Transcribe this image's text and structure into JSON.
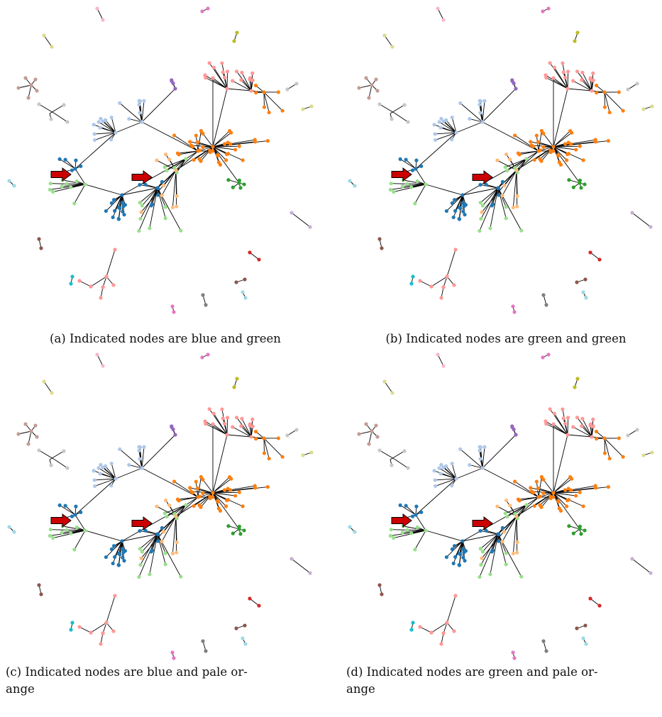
{
  "colors": {
    "edge": "#000000",
    "arrow_fill": "#cc0000",
    "arrow_stroke": "#000000",
    "blue": "#1f77b4",
    "light_blue": "#aec7e8",
    "orange": "#ff7f0e",
    "pale_orange": "#ffbb78",
    "green": "#2ca02c",
    "light_green": "#98df8a",
    "red": "#d62728",
    "pink_salmon": "#ff9896",
    "purple": "#9467bd",
    "lavender": "#c5b0d5",
    "brown": "#8c564b",
    "tan": "#c49c94",
    "magenta": "#e377c2",
    "pink": "#f7b6d2",
    "gray": "#7f7f7f",
    "light_gray": "#c7c7c7",
    "olive": "#bcbd22",
    "khaki": "#dbdb8d",
    "cyan": "#17becf",
    "light_cyan": "#9edae5"
  },
  "panels": [
    {
      "id": "a",
      "caption": "(a) Indicated nodes are blue and green"
    },
    {
      "id": "b",
      "caption": "(b) Indicated nodes are green and green"
    },
    {
      "id": "c",
      "caption_line1": "(c) Indicated nodes are blue and pale or-",
      "caption_line2": "ange"
    },
    {
      "id": "d",
      "caption_line1": "(d) Indicated nodes are green and pale or-",
      "caption_line2": "ange"
    }
  ]
}
